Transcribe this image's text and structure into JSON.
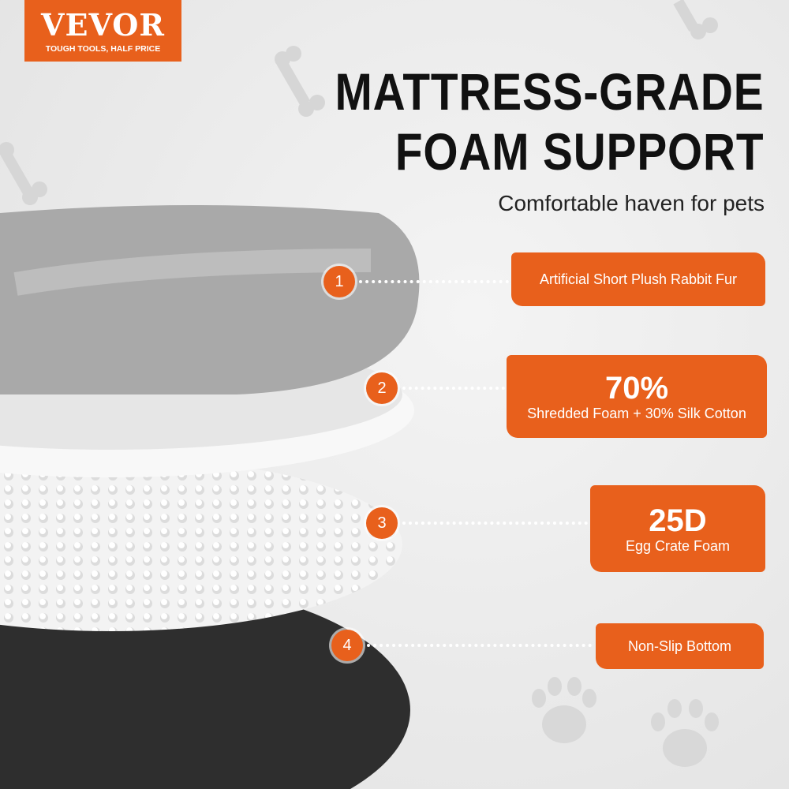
{
  "logo": {
    "brand": "VEVOR",
    "tagline": "TOUGH TOOLS, HALF PRICE"
  },
  "title": {
    "line1": "MATTRESS-GRADE",
    "line2": "FOAM SUPPORT"
  },
  "subtitle": "Comfortable haven for pets",
  "colors": {
    "accent": "#e8601c",
    "plush": "#a9a9a9",
    "base": "#2e2e2e"
  },
  "layers": [
    {
      "number": "1",
      "text": "Artificial Short Plush Rabbit Fur"
    },
    {
      "number": "2",
      "highlight": "70%",
      "text": "Shredded Foam + 30% Silk Cotton"
    },
    {
      "number": "3",
      "highlight": "25D",
      "text": "Egg Crate Foam"
    },
    {
      "number": "4",
      "text": "Non-Slip Bottom"
    }
  ],
  "decorations": [
    "bone-icon",
    "bone-icon",
    "bone-icon",
    "paw-icon",
    "paw-icon"
  ]
}
